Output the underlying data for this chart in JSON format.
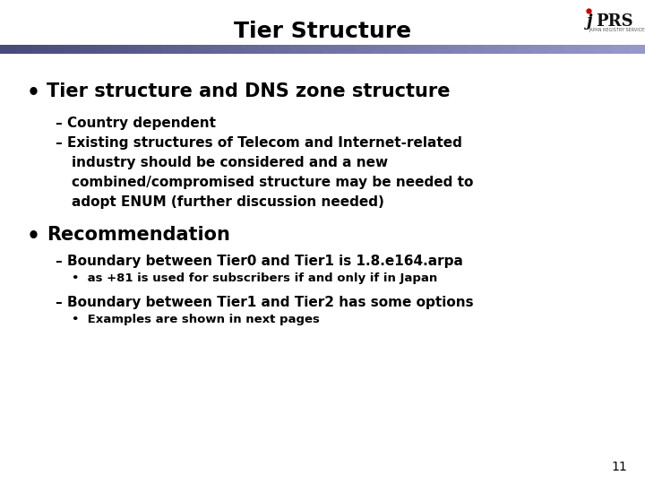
{
  "title": "Tier Structure",
  "title_fontsize": 18,
  "title_color": "#000000",
  "bg_color": "#ffffff",
  "header_bar_color1": "#4a4a7a",
  "header_bar_color2": "#9999cc",
  "slide_number": "11",
  "bullet1": "Tier structure and DNS zone structure",
  "bullet1_fontsize": 15,
  "sub1a": "– Country dependent",
  "sub1b_line1": "– Existing structures of Telecom and Internet-related",
  "sub1b_line2": "   industry should be considered and a new",
  "sub1b_line3": "   combined/compromised structure may be needed to",
  "sub1b_line4": "   adopt ENUM (further discussion needed)",
  "sub_fontsize": 11,
  "bullet2": "Recommendation",
  "bullet2_fontsize": 15,
  "sub2a": "– Boundary between Tier0 and Tier1 is 1.8.e164.arpa",
  "sub2a_fontsize": 11,
  "sub2a_sub": "as +81 is used for subscribers if and only if in Japan",
  "sub2a_sub_fontsize": 9.5,
  "sub2b": "– Boundary between Tier1 and Tier2 has some options",
  "sub2b_fontsize": 11,
  "sub2b_sub": "Examples are shown in next pages",
  "sub2b_sub_fontsize": 9.5
}
